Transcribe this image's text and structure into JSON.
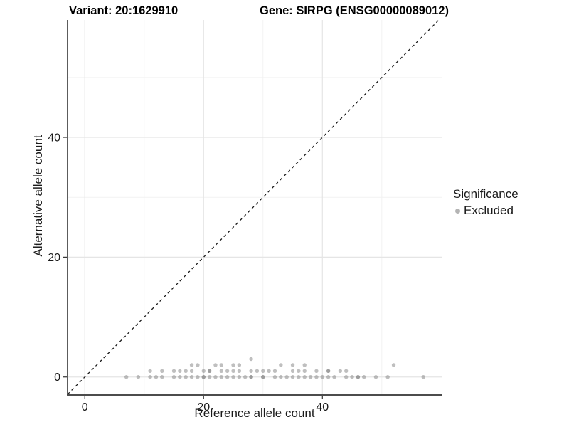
{
  "titles": {
    "variant": "Variant: 20:1629910",
    "gene": "Gene: SIRPG (ENSG00000089012)"
  },
  "chart_data": {
    "type": "scatter",
    "xlabel": "Reference allele count",
    "ylabel": "Alternative allele count",
    "xlim": [
      -2.9,
      60.2
    ],
    "ylim": [
      -3.0,
      59.6
    ],
    "xticks": [
      0,
      20,
      40
    ],
    "yticks": [
      0,
      20,
      40
    ],
    "minor_xticks": [
      10,
      30,
      50
    ],
    "minor_yticks": [
      10,
      30,
      50
    ],
    "grid": true,
    "identity_line": {
      "slope": 1,
      "intercept": 0,
      "linetype": "dashed",
      "color": "#1a1a1a"
    },
    "legend": {
      "title": "Significance",
      "position": "right",
      "items": [
        {
          "label": "Excluded",
          "color": "#b4b4b4"
        }
      ]
    },
    "point_color": "#7f7f7f",
    "point_opacity": 0.5,
    "points_format": "[x, y, overplot_count]",
    "points": [
      [
        7,
        0,
        1
      ],
      [
        9,
        0,
        1
      ],
      [
        11,
        0,
        1
      ],
      [
        12,
        0,
        1
      ],
      [
        13,
        0,
        1
      ],
      [
        15,
        0,
        1
      ],
      [
        16,
        0,
        1
      ],
      [
        17,
        0,
        1
      ],
      [
        18,
        0,
        1
      ],
      [
        19,
        0,
        1
      ],
      [
        20,
        0,
        2
      ],
      [
        21,
        0,
        1
      ],
      [
        22,
        0,
        1
      ],
      [
        23,
        0,
        1
      ],
      [
        24,
        0,
        1
      ],
      [
        25,
        0,
        1
      ],
      [
        26,
        0,
        1
      ],
      [
        27,
        0,
        1
      ],
      [
        28,
        0,
        2
      ],
      [
        30,
        0,
        2
      ],
      [
        32,
        0,
        1
      ],
      [
        33,
        0,
        1
      ],
      [
        34,
        0,
        1
      ],
      [
        35,
        0,
        1
      ],
      [
        36,
        0,
        1
      ],
      [
        37,
        0,
        1
      ],
      [
        38,
        0,
        1
      ],
      [
        39,
        0,
        1
      ],
      [
        40,
        0,
        1
      ],
      [
        41,
        0,
        1
      ],
      [
        42,
        0,
        1
      ],
      [
        44,
        0,
        1
      ],
      [
        45,
        0,
        1
      ],
      [
        46,
        0,
        2
      ],
      [
        47,
        0,
        1
      ],
      [
        49,
        0,
        1
      ],
      [
        51,
        0,
        1
      ],
      [
        57,
        0,
        1
      ],
      [
        11,
        1,
        1
      ],
      [
        13,
        1,
        1
      ],
      [
        15,
        1,
        1
      ],
      [
        16,
        1,
        1
      ],
      [
        17,
        1,
        1
      ],
      [
        18,
        1,
        1
      ],
      [
        20,
        1,
        1
      ],
      [
        21,
        1,
        2
      ],
      [
        23,
        1,
        1
      ],
      [
        24,
        1,
        1
      ],
      [
        25,
        1,
        1
      ],
      [
        26,
        1,
        1
      ],
      [
        28,
        1,
        1
      ],
      [
        29,
        1,
        1
      ],
      [
        30,
        1,
        1
      ],
      [
        31,
        1,
        1
      ],
      [
        32,
        1,
        1
      ],
      [
        35,
        1,
        1
      ],
      [
        36,
        1,
        1
      ],
      [
        37,
        1,
        1
      ],
      [
        39,
        1,
        1
      ],
      [
        41,
        1,
        2
      ],
      [
        43,
        1,
        1
      ],
      [
        44,
        1,
        1
      ],
      [
        18,
        2,
        1
      ],
      [
        19,
        2,
        1
      ],
      [
        22,
        2,
        1
      ],
      [
        23,
        2,
        1
      ],
      [
        25,
        2,
        1
      ],
      [
        26,
        2,
        1
      ],
      [
        33,
        2,
        1
      ],
      [
        35,
        2,
        1
      ],
      [
        37,
        2,
        1
      ],
      [
        52,
        2,
        1
      ],
      [
        28,
        3,
        1
      ]
    ]
  }
}
